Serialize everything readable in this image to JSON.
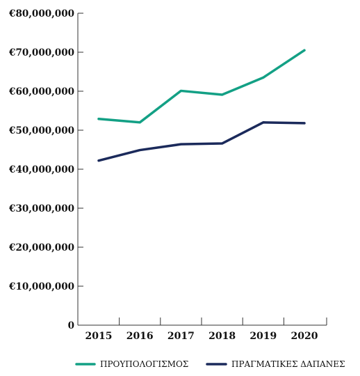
{
  "chart_data": {
    "type": "line",
    "x": [
      "2015",
      "2016",
      "2017",
      "2018",
      "2019",
      "2020"
    ],
    "y_ticks": [
      {
        "value": 0,
        "label": "0"
      },
      {
        "value": 10000000,
        "label": "€10,000,000"
      },
      {
        "value": 20000000,
        "label": "€20,000,000"
      },
      {
        "value": 30000000,
        "label": "€30,000,000"
      },
      {
        "value": 40000000,
        "label": "€40,000,000"
      },
      {
        "value": 50000000,
        "label": "€50,000,000"
      },
      {
        "value": 60000000,
        "label": "€60,000,000"
      },
      {
        "value": 70000000,
        "label": "€70,000,000"
      },
      {
        "value": 80000000,
        "label": "€80,000,000"
      }
    ],
    "ylim": [
      0,
      80000000
    ],
    "grid": false,
    "legend_position": "bottom",
    "series": [
      {
        "name": "ΠΡΟΥΠΟΛΟΓΙΣΜΟΣ",
        "color": "#13a085",
        "values": [
          52900000,
          52000000,
          60100000,
          59100000,
          63500000,
          70500000
        ]
      },
      {
        "name": "ΠΡΑΓΜΑΤΙΚΕΣ ΔΑΠΑΝΕΣ",
        "color": "#1b2a5b",
        "values": [
          42200000,
          44900000,
          46400000,
          46600000,
          52000000,
          51800000
        ]
      }
    ]
  }
}
